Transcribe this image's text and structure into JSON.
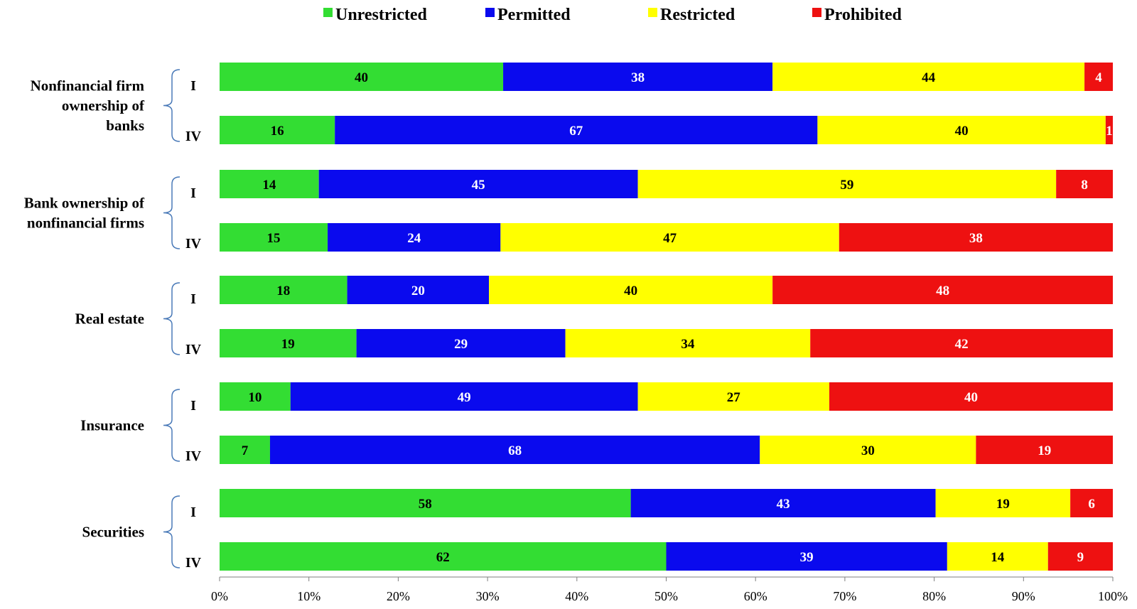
{
  "chart_data": {
    "type": "bar",
    "orientation": "horizontal",
    "stacking": "percent",
    "legend_position": "top",
    "grid": false,
    "xlim": [
      0,
      100
    ],
    "x_ticks": [
      "0%",
      "10%",
      "20%",
      "30%",
      "40%",
      "50%",
      "60%",
      "70%",
      "80%",
      "90%",
      "100%"
    ],
    "series": [
      {
        "name": "Unrestricted",
        "color": "#33dd33",
        "label_color": "#000000"
      },
      {
        "name": "Permitted",
        "color": "#0a0aee",
        "label_color": "#ffffff"
      },
      {
        "name": "Restricted",
        "color": "#ffff00",
        "label_color": "#000000"
      },
      {
        "name": "Prohibited",
        "color": "#ee1111",
        "label_color": "#ffffff"
      }
    ],
    "groups": [
      {
        "label": [
          "Nonfinancial firm",
          "ownership of",
          "banks"
        ],
        "bars": [
          {
            "wave": "I",
            "values": [
              40,
              38,
              44,
              4
            ]
          },
          {
            "wave": "IV",
            "values": [
              16,
              67,
              40,
              1
            ]
          }
        ]
      },
      {
        "label": [
          "Bank ownership of",
          "nonfinancial firms"
        ],
        "bars": [
          {
            "wave": "I",
            "values": [
              14,
              45,
              59,
              8
            ]
          },
          {
            "wave": "IV",
            "values": [
              15,
              24,
              47,
              38
            ]
          }
        ]
      },
      {
        "label": [
          "Real estate"
        ],
        "bars": [
          {
            "wave": "I",
            "values": [
              18,
              20,
              40,
              48
            ]
          },
          {
            "wave": "IV",
            "values": [
              19,
              29,
              34,
              42
            ]
          }
        ]
      },
      {
        "label": [
          "Insurance"
        ],
        "bars": [
          {
            "wave": "I",
            "values": [
              10,
              49,
              27,
              40
            ]
          },
          {
            "wave": "IV",
            "values": [
              7,
              68,
              30,
              19
            ]
          }
        ]
      },
      {
        "label": [
          "Securities"
        ],
        "bars": [
          {
            "wave": "I",
            "values": [
              58,
              43,
              19,
              6
            ]
          },
          {
            "wave": "IV",
            "values": [
              62,
              39,
              14,
              9
            ]
          }
        ]
      }
    ]
  }
}
